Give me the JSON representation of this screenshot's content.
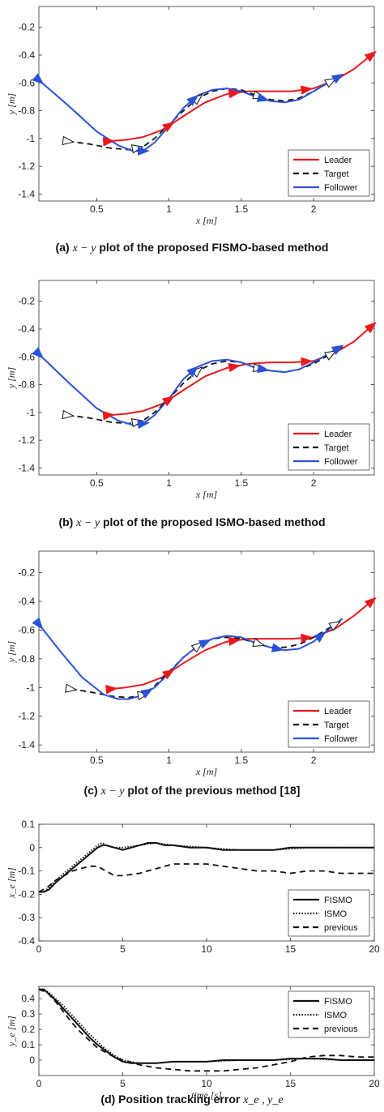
{
  "captions": {
    "a": {
      "label": "(a)",
      "math": "x − y",
      "text": "plot of the proposed FISMO-based method"
    },
    "b": {
      "label": "(b)",
      "math": "x − y",
      "text": "plot of the proposed ISMO-based method"
    },
    "c": {
      "label": "(c)",
      "math": "x − y",
      "text": "plot of the previous method [18]"
    },
    "d": {
      "text": "(d) Position tracking error",
      "math": "x_e , y_e"
    }
  },
  "colors": {
    "leader": "#e8191c",
    "target": "#111111",
    "follower": "#2a52d6",
    "fismo": "#111111",
    "ismo": "#111111",
    "previous": "#111111"
  },
  "chart_data": [
    {
      "type": "line",
      "id": "a",
      "xlabel": "x [m]",
      "ylabel": "y [m]",
      "xlim": [
        0.1,
        2.42
      ],
      "ylim": [
        -1.45,
        -0.05
      ],
      "xticks": [
        0.5,
        1,
        1.5,
        2
      ],
      "xticklabels": [
        "0.5",
        "1",
        "1.5",
        "2"
      ],
      "yticks": [
        -0.2,
        -0.4,
        -0.6,
        -0.8,
        -1,
        -1.2,
        -1.4
      ],
      "yticklabels": [
        "-0.2",
        "-0.4",
        "-0.6",
        "-0.8",
        "-1",
        "-1.2",
        "-1.4"
      ],
      "legend_position": "bottom-right",
      "grid": false,
      "series": [
        {
          "name": "Leader",
          "style": "solid",
          "x": [
            0.58,
            0.7,
            0.82,
            0.95,
            1.1,
            1.25,
            1.4,
            1.55,
            1.7,
            1.85,
            2.0,
            2.15,
            2.28,
            2.4
          ],
          "y": [
            -1.02,
            -1.01,
            -0.99,
            -0.94,
            -0.84,
            -0.74,
            -0.68,
            -0.66,
            -0.66,
            -0.66,
            -0.64,
            -0.58,
            -0.5,
            -0.4
          ]
        },
        {
          "name": "Target",
          "style": "dashed",
          "x": [
            0.3,
            0.45,
            0.6,
            0.72,
            0.82,
            0.9,
            1.0,
            1.1,
            1.2,
            1.3,
            1.4,
            1.5,
            1.6,
            1.7,
            1.8,
            1.9,
            2.0,
            2.1,
            2.2
          ],
          "y": [
            -1.02,
            -1.04,
            -1.07,
            -1.08,
            -1.06,
            -1.0,
            -0.9,
            -0.8,
            -0.71,
            -0.66,
            -0.64,
            -0.65,
            -0.69,
            -0.72,
            -0.73,
            -0.71,
            -0.66,
            -0.6,
            -0.54
          ]
        },
        {
          "name": "Follower",
          "style": "solid",
          "x": [
            0.1,
            0.3,
            0.5,
            0.65,
            0.75,
            0.82,
            0.9,
            1.0,
            1.1,
            1.2,
            1.3,
            1.4,
            1.5,
            1.6,
            1.7,
            1.8,
            1.9,
            2.0,
            2.1,
            2.2
          ],
          "y": [
            -0.58,
            -0.76,
            -0.95,
            -1.05,
            -1.09,
            -1.09,
            -1.03,
            -0.91,
            -0.78,
            -0.69,
            -0.65,
            -0.64,
            -0.66,
            -0.7,
            -0.73,
            -0.74,
            -0.72,
            -0.66,
            -0.6,
            -0.54
          ]
        }
      ],
      "markers": [
        {
          "series": "Leader",
          "x": [
            0.58,
            1.0,
            1.45,
            1.95,
            2.4
          ]
        },
        {
          "series": "Target",
          "x": [
            0.3,
            0.78,
            1.2,
            1.62,
            2.12
          ]
        },
        {
          "series": "Follower",
          "x": [
            0.1,
            0.82,
            1.17,
            1.65,
            2.17
          ]
        }
      ]
    },
    {
      "type": "line",
      "id": "b",
      "xlabel": "x [m]",
      "ylabel": "y [m]",
      "xlim": [
        0.1,
        2.42
      ],
      "ylim": [
        -1.45,
        -0.05
      ],
      "xticks": [
        0.5,
        1,
        1.5,
        2
      ],
      "xticklabels": [
        "0.5",
        "1",
        "1.5",
        "2"
      ],
      "yticks": [
        -0.2,
        -0.4,
        -0.6,
        -0.8,
        -1,
        -1.2,
        -1.4
      ],
      "yticklabels": [
        "-0.2",
        "-0.4",
        "-0.6",
        "-0.8",
        "-1",
        "-1.2",
        "-1.4"
      ],
      "legend_position": "bottom-right",
      "grid": false,
      "series": [
        {
          "name": "Leader",
          "style": "solid",
          "x": [
            0.58,
            0.7,
            0.82,
            0.95,
            1.1,
            1.25,
            1.4,
            1.55,
            1.7,
            1.85,
            2.0,
            2.15,
            2.28,
            2.4
          ],
          "y": [
            -1.02,
            -1.01,
            -0.99,
            -0.94,
            -0.84,
            -0.74,
            -0.68,
            -0.65,
            -0.64,
            -0.64,
            -0.63,
            -0.57,
            -0.49,
            -0.38
          ]
        },
        {
          "name": "Target",
          "style": "dashed",
          "x": [
            0.3,
            0.45,
            0.6,
            0.72,
            0.82,
            0.9,
            1.0,
            1.1,
            1.2,
            1.3,
            1.4,
            1.5,
            1.6,
            1.7,
            1.8,
            1.9,
            2.0,
            2.1,
            2.2
          ],
          "y": [
            -1.02,
            -1.04,
            -1.07,
            -1.08,
            -1.06,
            -1.0,
            -0.9,
            -0.79,
            -0.7,
            -0.65,
            -0.63,
            -0.64,
            -0.68,
            -0.7,
            -0.71,
            -0.69,
            -0.65,
            -0.59,
            -0.53
          ]
        },
        {
          "name": "Follower",
          "style": "solid",
          "x": [
            0.1,
            0.3,
            0.5,
            0.65,
            0.75,
            0.82,
            0.9,
            1.0,
            1.1,
            1.2,
            1.3,
            1.4,
            1.5,
            1.6,
            1.7,
            1.8,
            1.9,
            2.0,
            2.1,
            2.2
          ],
          "y": [
            -0.58,
            -0.78,
            -0.97,
            -1.06,
            -1.09,
            -1.08,
            -1.02,
            -0.9,
            -0.76,
            -0.67,
            -0.63,
            -0.62,
            -0.64,
            -0.68,
            -0.7,
            -0.71,
            -0.69,
            -0.64,
            -0.58,
            -0.52
          ]
        }
      ],
      "markers": [
        {
          "series": "Leader",
          "x": [
            0.58,
            1.0,
            1.45,
            1.95,
            2.4
          ]
        },
        {
          "series": "Target",
          "x": [
            0.3,
            0.78,
            1.2,
            1.62,
            2.12
          ]
        },
        {
          "series": "Follower",
          "x": [
            0.1,
            0.82,
            1.17,
            1.65,
            2.17
          ]
        }
      ]
    },
    {
      "type": "line",
      "id": "c",
      "xlabel": "x [m]",
      "ylabel": "y [m]",
      "xlim": [
        0.1,
        2.42
      ],
      "ylim": [
        -1.45,
        -0.05
      ],
      "xticks": [
        0.5,
        1,
        1.5,
        2
      ],
      "xticklabels": [
        "0.5",
        "1",
        "1.5",
        "2"
      ],
      "yticks": [
        -0.2,
        -0.4,
        -0.6,
        -0.8,
        -1,
        -1.2,
        -1.4
      ],
      "yticklabels": [
        "-0.2",
        "-0.4",
        "-0.6",
        "-0.8",
        "-1",
        "-1.2",
        "-1.4"
      ],
      "legend_position": "bottom-right",
      "grid": false,
      "series": [
        {
          "name": "Leader",
          "style": "solid",
          "x": [
            0.6,
            0.7,
            0.82,
            0.95,
            1.1,
            1.25,
            1.4,
            1.55,
            1.7,
            1.85,
            2.0,
            2.15,
            2.28,
            2.4
          ],
          "y": [
            -1.01,
            -1.0,
            -0.98,
            -0.93,
            -0.83,
            -0.74,
            -0.68,
            -0.66,
            -0.66,
            -0.66,
            -0.65,
            -0.59,
            -0.5,
            -0.4
          ]
        },
        {
          "name": "Target",
          "style": "dashed",
          "x": [
            0.32,
            0.45,
            0.6,
            0.72,
            0.82,
            0.9,
            1.0,
            1.1,
            1.2,
            1.3,
            1.4,
            1.5,
            1.6,
            1.7,
            1.8,
            1.9,
            2.0,
            2.1,
            2.2
          ],
          "y": [
            -1.01,
            -1.03,
            -1.06,
            -1.07,
            -1.05,
            -0.99,
            -0.89,
            -0.79,
            -0.71,
            -0.66,
            -0.65,
            -0.66,
            -0.69,
            -0.72,
            -0.72,
            -0.7,
            -0.65,
            -0.59,
            -0.53
          ]
        },
        {
          "name": "Follower",
          "style": "solid",
          "x": [
            0.1,
            0.25,
            0.4,
            0.55,
            0.65,
            0.72,
            0.8,
            0.9,
            1.0,
            1.1,
            1.2,
            1.3,
            1.4,
            1.5,
            1.6,
            1.7,
            1.8,
            1.9,
            2.0,
            2.1,
            2.2
          ],
          "y": [
            -0.56,
            -0.75,
            -0.93,
            -1.05,
            -1.08,
            -1.08,
            -1.06,
            -1.0,
            -0.9,
            -0.79,
            -0.71,
            -0.66,
            -0.64,
            -0.65,
            -0.69,
            -0.72,
            -0.74,
            -0.73,
            -0.68,
            -0.6,
            -0.52
          ]
        }
      ],
      "markers": [
        {
          "series": "Leader",
          "x": [
            0.6,
            1.0,
            1.45,
            1.95,
            2.4
          ]
        },
        {
          "series": "Target",
          "x": [
            0.32,
            0.82,
            1.2,
            1.62,
            2.15
          ]
        },
        {
          "series": "Follower",
          "x": [
            0.1,
            0.85,
            1.25,
            1.75,
            2.05
          ]
        }
      ]
    },
    {
      "type": "line",
      "id": "d_xe",
      "xlabel": "",
      "ylabel": "x_e [m]",
      "xlim": [
        0,
        20
      ],
      "ylim": [
        -0.4,
        0.1
      ],
      "xticks": [
        0,
        5,
        10,
        15,
        20
      ],
      "xticklabels": [
        "0",
        "5",
        "10",
        "15",
        "20"
      ],
      "yticks": [
        0.1,
        0,
        -0.1,
        -0.2,
        -0.3,
        -0.4
      ],
      "yticklabels": [
        "0.1",
        "0",
        "-0.1",
        "-0.2",
        "-0.3",
        "-0.4"
      ],
      "legend_position": "bottom-right",
      "grid": false,
      "series": [
        {
          "name": "FISMO",
          "style": "solid",
          "x": [
            0,
            0.3,
            0.6,
            1,
            1.5,
            2,
            2.5,
            3,
            3.5,
            3.8,
            4,
            4.5,
            5,
            5.5,
            6,
            6.5,
            7,
            7.5,
            8,
            9,
            10,
            11,
            12,
            13,
            14,
            15,
            16,
            17,
            18,
            19,
            20
          ],
          "y": [
            -0.19,
            -0.19,
            -0.18,
            -0.15,
            -0.12,
            -0.09,
            -0.06,
            -0.03,
            0.0,
            0.01,
            0.01,
            0.0,
            -0.01,
            0.0,
            0.01,
            0.02,
            0.02,
            0.01,
            0.01,
            0.0,
            0.0,
            -0.01,
            -0.01,
            -0.01,
            -0.01,
            0.0,
            0.0,
            0.0,
            0.0,
            0.0,
            0.0
          ]
        },
        {
          "name": "ISMO",
          "style": "dotted",
          "x": [
            0,
            0.3,
            0.6,
            1,
            1.5,
            2,
            2.5,
            3,
            3.5,
            3.8,
            4,
            4.5,
            5,
            6,
            7,
            8,
            10,
            12,
            14,
            16,
            18,
            20
          ],
          "y": [
            -0.19,
            -0.19,
            -0.17,
            -0.14,
            -0.11,
            -0.08,
            -0.05,
            -0.02,
            0.01,
            0.02,
            0.01,
            0.0,
            0.0,
            0.01,
            0.02,
            0.01,
            0.0,
            -0.01,
            -0.01,
            0.0,
            0.0,
            0.0
          ]
        },
        {
          "name": "previous",
          "style": "dashed",
          "x": [
            0,
            0.5,
            1,
            1.5,
            2,
            2.5,
            3,
            3.5,
            4,
            4.5,
            5,
            6,
            7,
            8,
            9,
            10,
            11,
            12,
            13,
            14,
            15,
            16,
            17,
            18,
            19,
            20
          ],
          "y": [
            -0.19,
            -0.17,
            -0.14,
            -0.12,
            -0.1,
            -0.09,
            -0.08,
            -0.08,
            -0.1,
            -0.12,
            -0.12,
            -0.11,
            -0.09,
            -0.07,
            -0.07,
            -0.07,
            -0.08,
            -0.09,
            -0.1,
            -0.1,
            -0.11,
            -0.1,
            -0.1,
            -0.11,
            -0.11,
            -0.11
          ]
        }
      ]
    },
    {
      "type": "line",
      "id": "d_ye",
      "xlabel": "time [s]",
      "ylabel": "y_e [m]",
      "xlim": [
        0,
        20
      ],
      "ylim": [
        -0.1,
        0.48
      ],
      "xticks": [
        0,
        5,
        10,
        15,
        20
      ],
      "xticklabels": [
        "0",
        "5",
        "10",
        "15",
        "20"
      ],
      "yticks": [
        0.4,
        0.3,
        0.2,
        0.1,
        0
      ],
      "yticklabels": [
        "0.4",
        "0.3",
        "0.2",
        "0.1",
        "0"
      ],
      "legend_position": "top-right",
      "grid": false,
      "series": [
        {
          "name": "FISMO",
          "style": "solid",
          "x": [
            0,
            0.3,
            0.6,
            1,
            1.5,
            2,
            2.5,
            3,
            3.5,
            4,
            4.5,
            5,
            5.5,
            6,
            6.5,
            7,
            8,
            9,
            10,
            11,
            12,
            13,
            14,
            15,
            16,
            17,
            18,
            19,
            20
          ],
          "y": [
            0.46,
            0.46,
            0.43,
            0.39,
            0.33,
            0.27,
            0.21,
            0.15,
            0.1,
            0.06,
            0.02,
            -0.01,
            -0.02,
            -0.02,
            -0.02,
            -0.02,
            -0.01,
            -0.01,
            -0.01,
            0.0,
            0.0,
            0.0,
            0.0,
            0.01,
            0.01,
            0.01,
            0.0,
            0.0,
            0.0
          ]
        },
        {
          "name": "ISMO",
          "style": "dotted",
          "x": [
            0,
            0.3,
            0.6,
            1,
            1.5,
            2,
            2.5,
            3,
            3.5,
            4,
            4.5,
            5,
            5.5,
            6,
            7,
            8,
            10,
            12,
            14,
            16,
            18,
            20
          ],
          "y": [
            0.46,
            0.46,
            0.44,
            0.4,
            0.35,
            0.29,
            0.23,
            0.17,
            0.12,
            0.07,
            0.03,
            0.0,
            -0.01,
            -0.02,
            -0.02,
            -0.01,
            -0.01,
            0.0,
            0.0,
            0.01,
            0.0,
            0.0
          ]
        },
        {
          "name": "previous",
          "style": "dashed",
          "x": [
            0,
            0.5,
            1,
            1.5,
            2,
            2.5,
            3,
            3.5,
            4,
            4.5,
            5,
            6,
            7,
            8,
            9,
            10,
            11,
            12,
            13,
            14,
            15,
            16,
            17,
            18,
            19,
            20
          ],
          "y": [
            0.46,
            0.44,
            0.38,
            0.31,
            0.24,
            0.18,
            0.13,
            0.08,
            0.05,
            0.02,
            0.0,
            -0.03,
            -0.05,
            -0.06,
            -0.07,
            -0.07,
            -0.07,
            -0.06,
            -0.05,
            -0.03,
            -0.01,
            0.02,
            0.03,
            0.03,
            0.02,
            0.02
          ]
        }
      ]
    }
  ]
}
